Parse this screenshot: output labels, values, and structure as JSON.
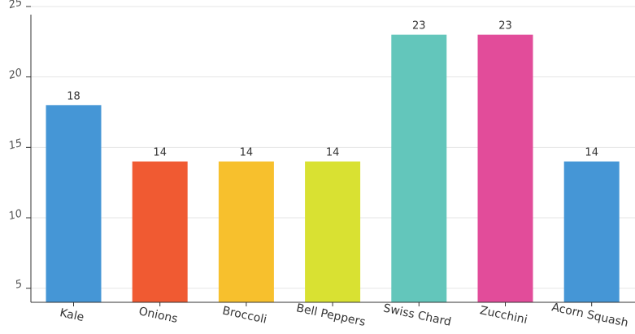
{
  "chart_data": {
    "type": "bar",
    "categories": [
      "Kale",
      "Onions",
      "Broccoli",
      "Bell Peppers",
      "Swiss Chard",
      "Zucchini",
      "Acorn Squash"
    ],
    "values": [
      18,
      14,
      14,
      14,
      23,
      23,
      14
    ],
    "colors": [
      "#4596d6",
      "#f05a32",
      "#f7c02d",
      "#d9e132",
      "#63c6bb",
      "#e24c9a",
      "#4596d6"
    ],
    "ylim": [
      4,
      25
    ],
    "yticks": [
      5,
      10,
      15,
      20,
      25
    ],
    "grid": true,
    "show_data_labels": true
  }
}
